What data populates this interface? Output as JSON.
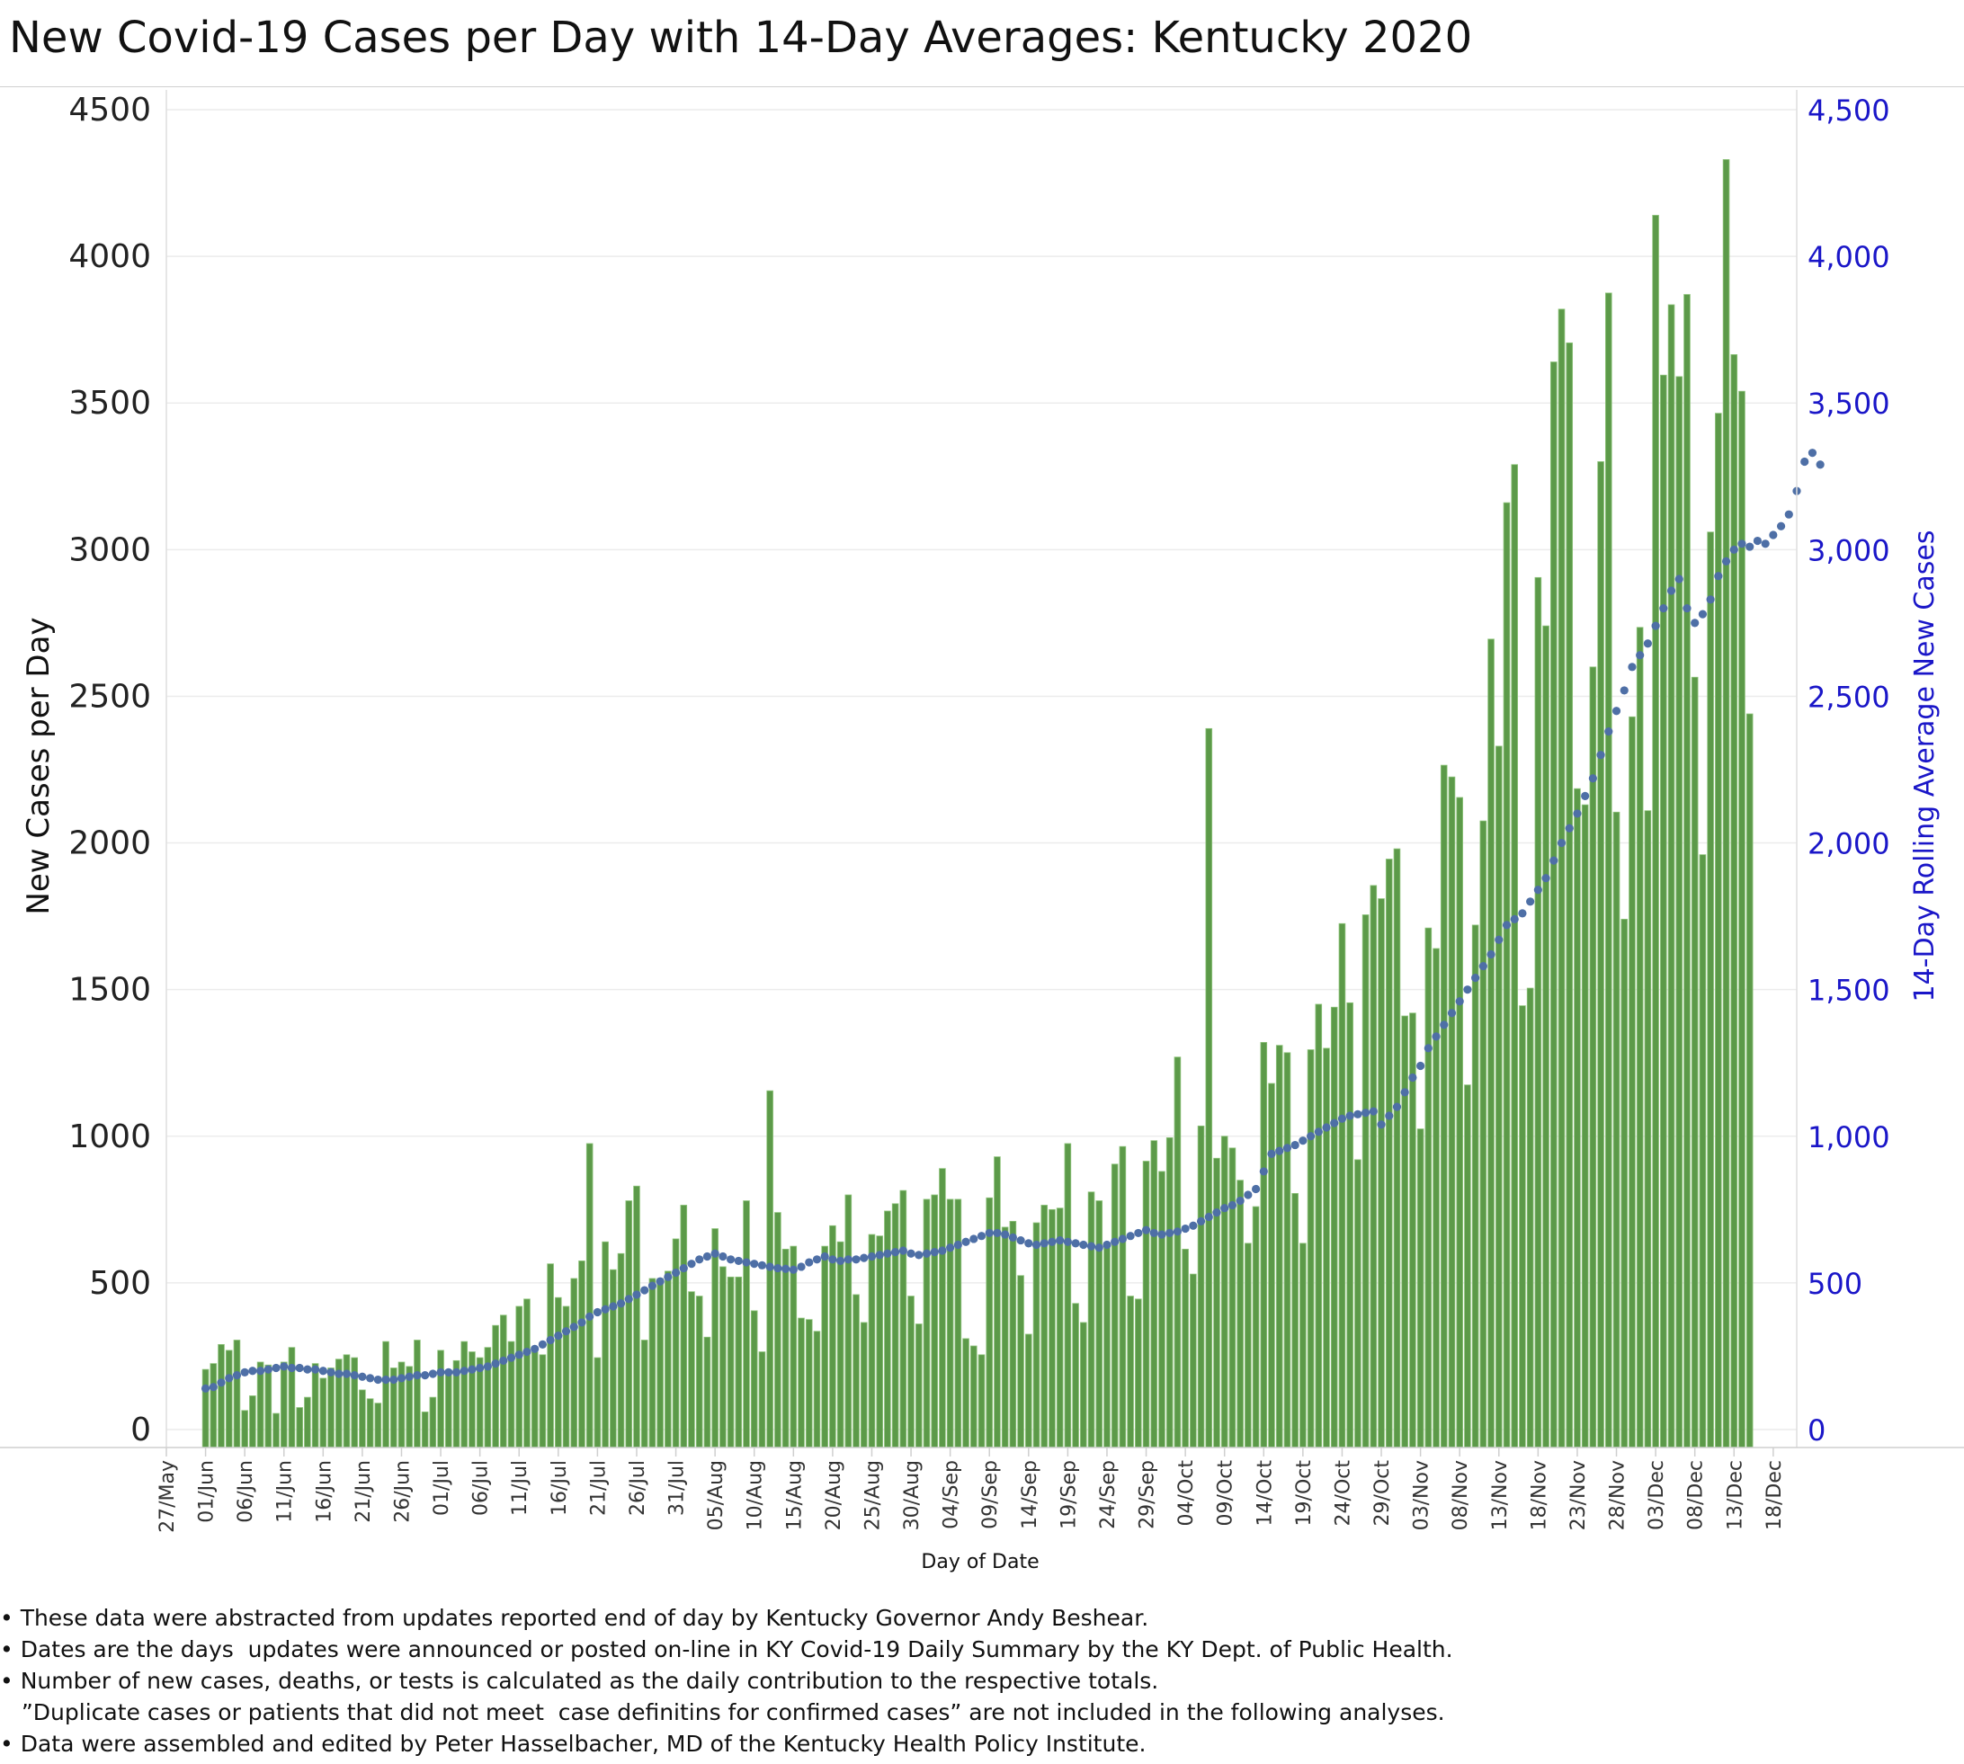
{
  "title": "New Covid-19 Cases per Day with 14-Day Averages: Kentucky  2020",
  "notes": [
    "• These data were abstracted from updates reported end of day by Kentucky Governor Andy Beshear.",
    "• Dates are the days  updates were announced or posted on-line in KY Covid-19 Daily Summary by the KY Dept. of Public Health.",
    "• Number of new cases, deaths, or tests is calculated as the daily contribution to the respective totals.",
    "   ”Duplicate cases or patients that did not meet  case definitins for confirmed cases” are not included in the following analyses.",
    "• Data were assembled and edited by Peter Hasselbacher, MD of the Kentucky Health Policy Institute."
  ],
  "colors": {
    "bar": "#5c9a49",
    "bar_edge": "#8fc47c",
    "avg": "#4e6fa6",
    "right_axis": "#1a16c8",
    "grid": "#ececec"
  },
  "chart_data": {
    "type": "bar",
    "xlabel": "Day of Date",
    "ylabel": "New Cases per Day",
    "y2label": "14-Day Rolling Average New Cases",
    "ylim": [
      0,
      4500
    ],
    "y2lim": [
      0,
      4500
    ],
    "yticks": [
      "0",
      "500",
      "1000",
      "1500",
      "2000",
      "2500",
      "3000",
      "3500",
      "4000",
      "4500"
    ],
    "y2ticks": [
      "0",
      "500",
      "1,000",
      "1,500",
      "2,000",
      "2,500",
      "3,000",
      "3,500",
      "4,000",
      "4,500"
    ],
    "xticks": [
      "27/May",
      "01/Jun",
      "06/Jun",
      "11/Jun",
      "16/Jun",
      "21/Jun",
      "26/Jun",
      "01/Jul",
      "06/Jul",
      "11/Jul",
      "16/Jul",
      "21/Jul",
      "26/Jul",
      "31/Jul",
      "05/Aug",
      "10/Aug",
      "15/Aug",
      "20/Aug",
      "25/Aug",
      "30/Aug",
      "04/Sep",
      "09/Sep",
      "14/Sep",
      "19/Sep",
      "24/Sep",
      "29/Sep",
      "04/Oct",
      "09/Oct",
      "14/Oct",
      "19/Oct",
      "24/Oct",
      "29/Oct",
      "03/Nov",
      "08/Nov",
      "13/Nov",
      "18/Nov",
      "23/Nov",
      "28/Nov",
      "03/Dec",
      "08/Dec",
      "13/Dec",
      "18/Dec"
    ],
    "x_start": "2020-05-27",
    "x_end": "2020-12-21",
    "first_bar_date": "2020-06-01",
    "series": [
      {
        "name": "New Cases per Day",
        "values": [
          205,
          225,
          290,
          270,
          305,
          65,
          115,
          230,
          220,
          55,
          230,
          280,
          75,
          110,
          225,
          175,
          210,
          240,
          255,
          245,
          135,
          105,
          90,
          300,
          210,
          230,
          215,
          305,
          60,
          110,
          270,
          185,
          235,
          300,
          265,
          245,
          280,
          355,
          390,
          300,
          420,
          445,
          265,
          255,
          565,
          450,
          420,
          515,
          575,
          975,
          245,
          640,
          545,
          600,
          780,
          830,
          305,
          515,
          515,
          540,
          650,
          765,
          470,
          455,
          315,
          685,
          555,
          520,
          520,
          780,
          405,
          265,
          1155,
          740,
          615,
          625,
          380,
          375,
          335,
          625,
          695,
          640,
          800,
          460,
          365,
          665,
          660,
          745,
          770,
          815,
          455,
          360,
          785,
          800,
          890,
          785,
          785,
          310,
          285,
          255,
          790,
          930,
          690,
          710,
          525,
          325,
          705,
          765,
          750,
          755,
          975,
          430,
          365,
          810,
          780,
          635,
          905,
          965,
          455,
          445,
          915,
          985,
          880,
          995,
          1270,
          615,
          530,
          1035,
          2390,
          925,
          1000,
          960,
          850,
          635,
          760,
          1320,
          1180,
          1310,
          1285,
          805,
          635,
          1295,
          1450,
          1300,
          1440,
          1725,
          1455,
          920,
          1755,
          1855,
          1810,
          1945,
          1980,
          1410,
          1420,
          1025,
          1710,
          1640,
          2265,
          2225,
          2155,
          1175,
          1720,
          2075,
          2695,
          2330,
          3160,
          3290,
          1445,
          1505,
          2905,
          2740,
          3640,
          3820,
          3705,
          2185,
          2130,
          2600,
          3300,
          3875,
          2105,
          1740,
          2430,
          2735,
          2110,
          4140,
          3595,
          3835,
          3590,
          3870,
          2565,
          1960,
          3060,
          3465,
          4330,
          3665,
          3540,
          2440
        ]
      },
      {
        "name": "14-Day Average",
        "values": [
          140,
          145,
          160,
          175,
          185,
          195,
          200,
          200,
          205,
          210,
          215,
          210,
          210,
          205,
          205,
          200,
          195,
          190,
          190,
          185,
          180,
          175,
          170,
          170,
          170,
          175,
          180,
          185,
          185,
          190,
          195,
          195,
          195,
          200,
          205,
          210,
          215,
          225,
          235,
          245,
          255,
          265,
          275,
          290,
          305,
          320,
          335,
          350,
          365,
          385,
          400,
          410,
          420,
          430,
          445,
          460,
          475,
          490,
          505,
          520,
          535,
          550,
          565,
          580,
          590,
          600,
          590,
          580,
          575,
          570,
          565,
          560,
          555,
          550,
          548,
          545,
          555,
          570,
          580,
          590,
          580,
          575,
          580,
          580,
          585,
          590,
          595,
          600,
          605,
          610,
          600,
          595,
          600,
          605,
          610,
          620,
          630,
          640,
          650,
          660,
          670,
          670,
          665,
          655,
          645,
          635,
          630,
          635,
          640,
          645,
          640,
          635,
          630,
          625,
          620,
          630,
          640,
          650,
          660,
          670,
          680,
          670,
          665,
          670,
          675,
          685,
          695,
          710,
          725,
          740,
          755,
          765,
          780,
          800,
          820,
          880,
          940,
          950,
          960,
          970,
          985,
          1000,
          1015,
          1030,
          1045,
          1060,
          1070,
          1075,
          1080,
          1085,
          1040,
          1070,
          1100,
          1150,
          1200,
          1240,
          1300,
          1340,
          1380,
          1420,
          1460,
          1500,
          1540,
          1580,
          1620,
          1670,
          1720,
          1740,
          1760,
          1800,
          1840,
          1880,
          1940,
          2000,
          2050,
          2100,
          2160,
          2220,
          2300,
          2380,
          2450,
          2520,
          2600,
          2640,
          2680,
          2740,
          2800,
          2860,
          2900,
          2800,
          2750,
          2780,
          2830,
          2910,
          2960,
          3000,
          3020,
          3010,
          3030,
          3020,
          3050,
          3080,
          3120,
          3200,
          3300,
          3330,
          3290
        ]
      }
    ],
    "grid": true,
    "legend": "none"
  }
}
